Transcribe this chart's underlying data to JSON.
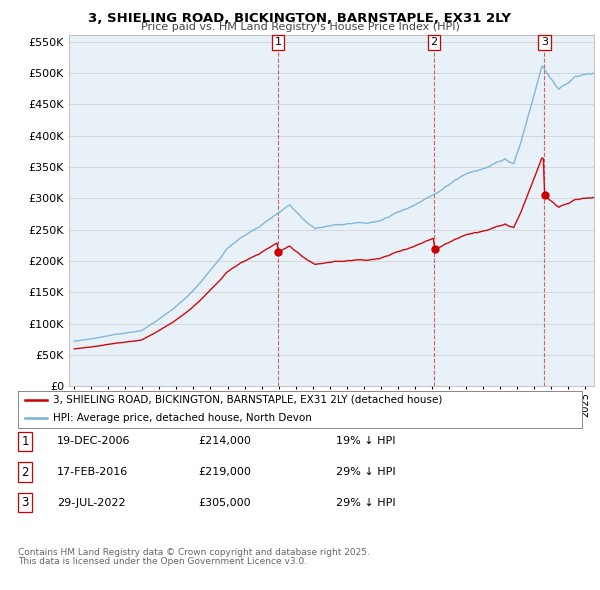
{
  "title": "3, SHIELING ROAD, BICKINGTON, BARNSTAPLE, EX31 2LY",
  "subtitle": "Price paid vs. HM Land Registry's House Price Index (HPI)",
  "ylim": [
    0,
    560000
  ],
  "yticks": [
    0,
    50000,
    100000,
    150000,
    200000,
    250000,
    300000,
    350000,
    400000,
    450000,
    500000,
    550000
  ],
  "ytick_labels": [
    "£0",
    "£50K",
    "£100K",
    "£150K",
    "£200K",
    "£250K",
    "£300K",
    "£350K",
    "£400K",
    "£450K",
    "£500K",
    "£550K"
  ],
  "legend_red": "3, SHIELING ROAD, BICKINGTON, BARNSTAPLE, EX31 2LY (detached house)",
  "legend_blue": "HPI: Average price, detached house, North Devon",
  "sale1_date": "19-DEC-2006",
  "sale1_price": "£214,000",
  "sale1_hpi": "19% ↓ HPI",
  "sale2_date": "17-FEB-2016",
  "sale2_price": "£219,000",
  "sale2_hpi": "29% ↓ HPI",
  "sale3_date": "29-JUL-2022",
  "sale3_price": "£305,000",
  "sale3_hpi": "29% ↓ HPI",
  "sale1_year": 2006.97,
  "sale2_year": 2016.12,
  "sale3_year": 2022.58,
  "sale1_value": 214000,
  "sale2_value": 219000,
  "sale3_value": 305000,
  "footnote1": "Contains HM Land Registry data © Crown copyright and database right 2025.",
  "footnote2": "This data is licensed under the Open Government Licence v3.0.",
  "bg_color": "#ffffff",
  "plot_bg": "#e8f0f8",
  "red_color": "#cc0000",
  "blue_color": "#7ab0d4"
}
